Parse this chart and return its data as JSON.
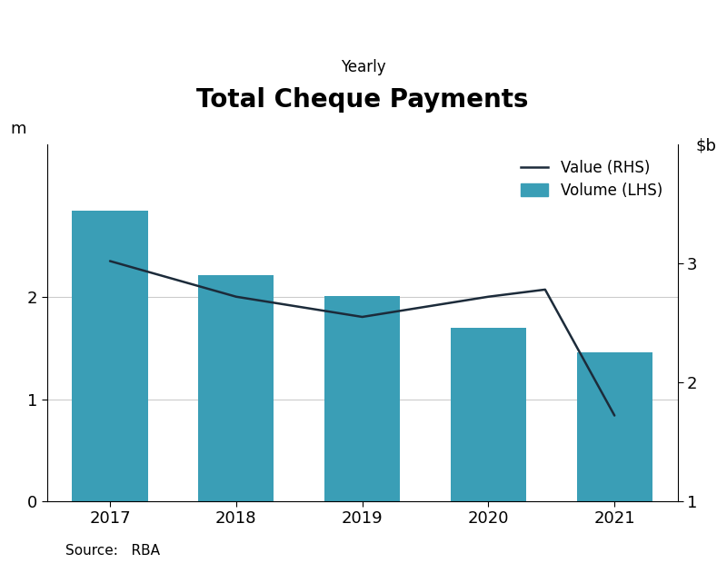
{
  "title": "Total Cheque Payments",
  "subtitle": "Yearly",
  "source": "Source:   RBA",
  "categories": [
    "2017",
    "2018",
    "2019",
    "2020",
    "2021"
  ],
  "bar_values": [
    2.85,
    2.22,
    2.01,
    1.7,
    1.46
  ],
  "line_x": [
    0,
    1,
    2,
    3,
    3.45,
    4
  ],
  "line_values_rhs": [
    3.02,
    2.72,
    2.55,
    2.72,
    2.78,
    1.72
  ],
  "bar_color": "#3a9eb6",
  "line_color": "#1c2b3a",
  "lhs_label": "m",
  "ylim_left": [
    0,
    3.5
  ],
  "ylim_right": [
    1,
    4.0
  ],
  "yticks_left": [
    0,
    1,
    2
  ],
  "yticks_right": [
    1,
    2,
    3
  ],
  "grid_color": "#cccccc",
  "legend_value_label": "Value (RHS)",
  "legend_volume_label": "Volume (LHS)",
  "title_fontsize": 20,
  "subtitle_fontsize": 12,
  "tick_fontsize": 13,
  "label_fontsize": 13,
  "legend_fontsize": 12,
  "source_fontsize": 11
}
